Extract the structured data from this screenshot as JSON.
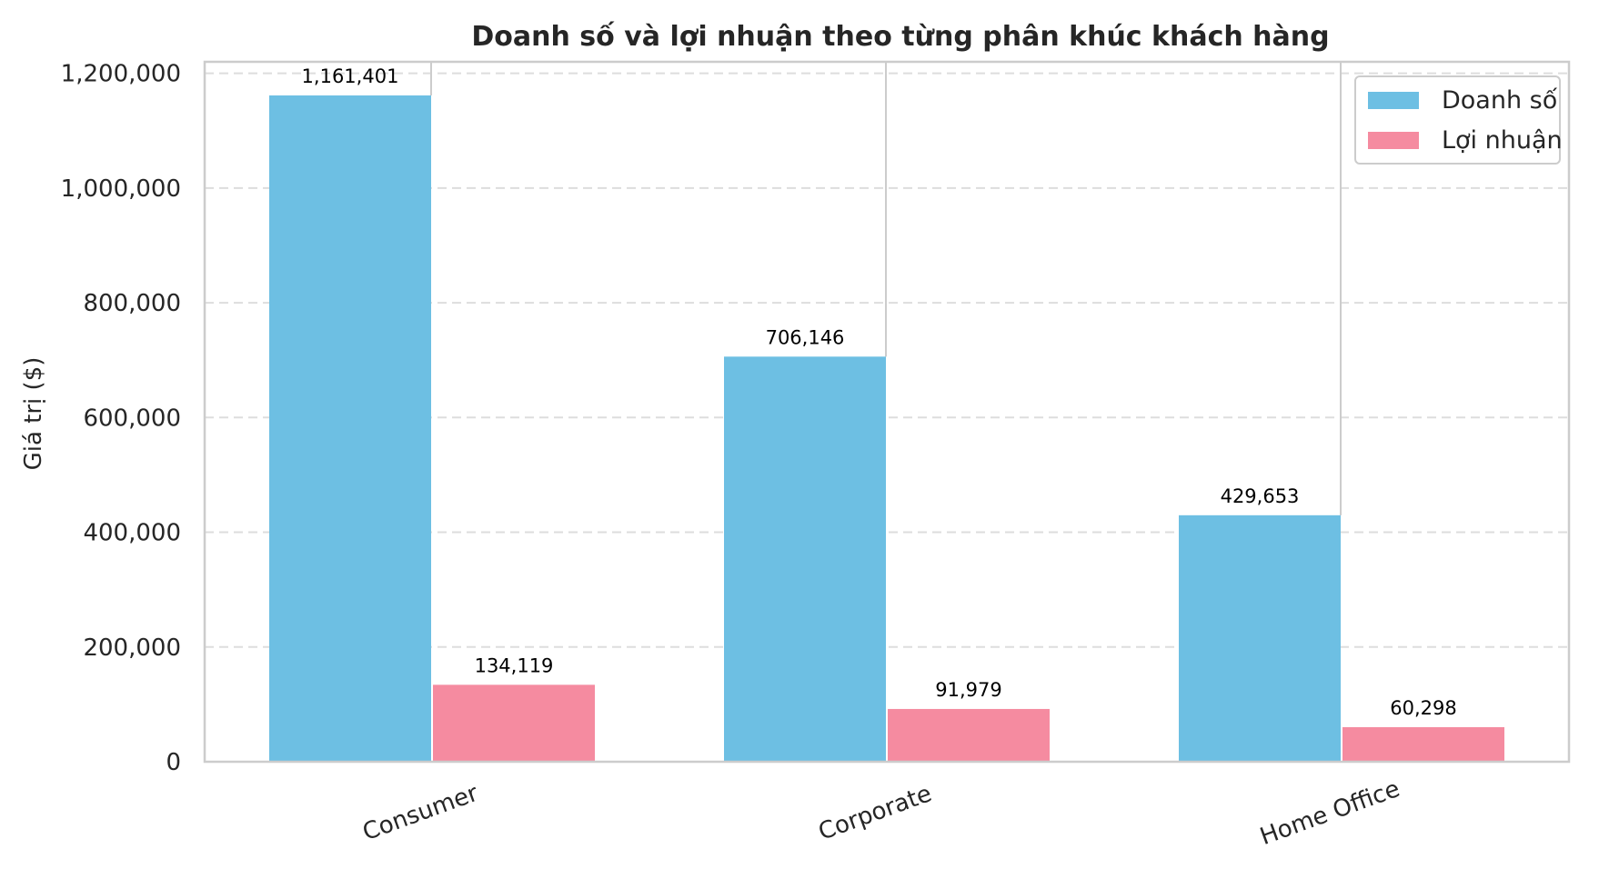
{
  "chart_data": {
    "type": "bar",
    "title": "Doanh số và lợi nhuận theo từng phân khúc khách hàng",
    "xlabel": "",
    "ylabel": "Giá trị ($)",
    "categories": [
      "Consumer",
      "Corporate",
      "Home Office"
    ],
    "series": [
      {
        "name": "Doanh số",
        "values": [
          1161401,
          706146,
          429653
        ],
        "color": "#6dbfe3"
      },
      {
        "name": "Lợi nhuận",
        "values": [
          134119,
          91979,
          60298
        ],
        "color": "#f58ba0"
      }
    ],
    "data_labels": [
      [
        "1,161,401",
        "706,146",
        "429,653"
      ],
      [
        "134,119",
        "91,979",
        "60,298"
      ]
    ],
    "ylim": [
      0,
      1220000
    ],
    "yticks": [
      0,
      200000,
      400000,
      600000,
      800000,
      1000000,
      1200000
    ],
    "ytick_labels": [
      "0",
      "200,000",
      "400,000",
      "600,000",
      "800,000",
      "1,000,000",
      "1,200,000"
    ],
    "grid": "y-dashed",
    "legend": "top-right",
    "xtick_rotation": "-20deg"
  }
}
